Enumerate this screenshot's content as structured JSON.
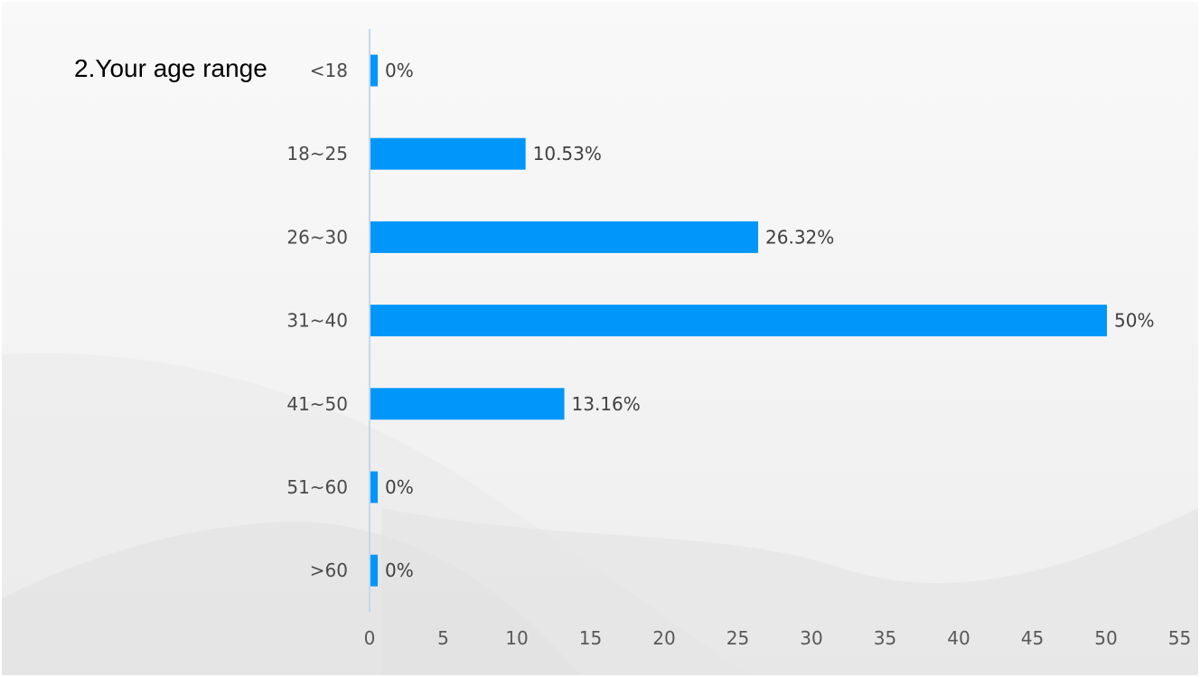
{
  "slide": {
    "title": "2.Your age range"
  },
  "chart_data": {
    "type": "bar",
    "orientation": "horizontal",
    "title": "2.Your age range",
    "categories": [
      "<18",
      "18~25",
      "26~30",
      "31~40",
      "41~50",
      "51~60",
      ">60"
    ],
    "values": [
      0,
      10.53,
      26.32,
      50,
      13.16,
      0,
      0
    ],
    "value_labels": [
      "0%",
      "10.53%",
      "26.32%",
      "50%",
      "13.16%",
      "0%",
      "0%"
    ],
    "x_ticks": [
      0,
      5,
      10,
      15,
      20,
      25,
      30,
      35,
      40,
      45,
      50,
      55
    ],
    "xlim": [
      0,
      55
    ],
    "xlabel": "",
    "ylabel": "",
    "grid": false,
    "legend": "none",
    "colors": {
      "bar": "#0096FA",
      "axis": "#C5D7EE"
    }
  }
}
